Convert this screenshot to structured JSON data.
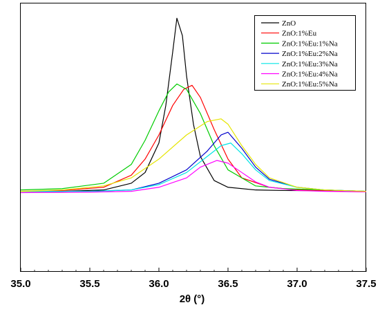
{
  "chart_data": {
    "type": "line",
    "title": "",
    "xlabel": "2θ (°)",
    "ylabel": "",
    "xlim": [
      35.0,
      37.5
    ],
    "ylim": [
      0,
      1
    ],
    "y_ticks_shown": false,
    "grid": false,
    "legend_position": "top-right",
    "x_ticks": [
      "35.0",
      "35.5",
      "36.0",
      "36.5",
      "37.0",
      "37.5"
    ],
    "series": [
      {
        "name": "ZnO",
        "color": "#000000",
        "x": [
          35.0,
          35.3,
          35.6,
          35.8,
          35.9,
          36.0,
          36.05,
          36.1,
          36.13,
          36.17,
          36.2,
          36.25,
          36.3,
          36.4,
          36.5,
          36.7,
          36.9,
          37.2,
          37.5
        ],
        "y": [
          0.3,
          0.3,
          0.305,
          0.33,
          0.37,
          0.48,
          0.62,
          0.82,
          0.945,
          0.88,
          0.73,
          0.55,
          0.43,
          0.34,
          0.315,
          0.305,
          0.303,
          0.302,
          0.3
        ]
      },
      {
        "name": "ZnO:1%Eu",
        "color": "#ff0000",
        "x": [
          35.0,
          35.3,
          35.6,
          35.8,
          35.9,
          36.0,
          36.1,
          36.18,
          36.24,
          36.3,
          36.4,
          36.5,
          36.6,
          36.8,
          37.0,
          37.3,
          37.5
        ],
        "y": [
          0.3,
          0.303,
          0.315,
          0.36,
          0.42,
          0.51,
          0.62,
          0.68,
          0.695,
          0.65,
          0.53,
          0.42,
          0.35,
          0.315,
          0.305,
          0.3,
          0.298
        ]
      },
      {
        "name": "ZnO:1%Eu:1%Na",
        "color": "#00cc00",
        "x": [
          35.0,
          35.3,
          35.6,
          35.8,
          35.9,
          36.0,
          36.07,
          36.13,
          36.2,
          36.3,
          36.4,
          36.5,
          36.7,
          36.9,
          37.2,
          37.5
        ],
        "y": [
          0.305,
          0.31,
          0.33,
          0.4,
          0.49,
          0.6,
          0.67,
          0.7,
          0.68,
          0.59,
          0.47,
          0.38,
          0.32,
          0.31,
          0.305,
          0.3
        ]
      },
      {
        "name": "ZnO:1%Eu:2%Na",
        "color": "#0000cc",
        "x": [
          35.0,
          35.5,
          35.8,
          36.0,
          36.2,
          36.35,
          36.45,
          36.5,
          36.6,
          36.7,
          36.8,
          37.0,
          37.2,
          37.5
        ],
        "y": [
          0.3,
          0.3,
          0.305,
          0.33,
          0.38,
          0.45,
          0.51,
          0.52,
          0.46,
          0.39,
          0.345,
          0.315,
          0.305,
          0.3
        ]
      },
      {
        "name": "ZnO:1%Eu:3%Na",
        "color": "#00e5e5",
        "x": [
          35.0,
          35.5,
          35.8,
          36.0,
          36.2,
          36.35,
          36.45,
          36.52,
          36.6,
          36.7,
          36.8,
          37.0,
          37.2,
          37.5
        ],
        "y": [
          0.3,
          0.3,
          0.305,
          0.325,
          0.37,
          0.43,
          0.47,
          0.48,
          0.44,
          0.38,
          0.34,
          0.315,
          0.305,
          0.3
        ]
      },
      {
        "name": "ZnO:1%Eu:4%Na",
        "color": "#ff00ff",
        "x": [
          35.0,
          35.5,
          35.8,
          36.0,
          36.2,
          36.3,
          36.42,
          36.5,
          36.6,
          36.7,
          36.8,
          37.0,
          37.2,
          37.5
        ],
        "y": [
          0.295,
          0.297,
          0.3,
          0.315,
          0.35,
          0.39,
          0.415,
          0.405,
          0.37,
          0.335,
          0.315,
          0.303,
          0.3,
          0.298
        ]
      },
      {
        "name": "ZnO:1%Eu:5%Na",
        "color": "#e5e500",
        "x": [
          35.0,
          35.3,
          35.6,
          35.8,
          36.0,
          36.2,
          36.35,
          36.45,
          36.5,
          36.6,
          36.7,
          36.8,
          37.0,
          37.2,
          37.5
        ],
        "y": [
          0.3,
          0.305,
          0.32,
          0.35,
          0.42,
          0.51,
          0.56,
          0.57,
          0.55,
          0.47,
          0.4,
          0.35,
          0.315,
          0.305,
          0.3
        ]
      }
    ]
  }
}
